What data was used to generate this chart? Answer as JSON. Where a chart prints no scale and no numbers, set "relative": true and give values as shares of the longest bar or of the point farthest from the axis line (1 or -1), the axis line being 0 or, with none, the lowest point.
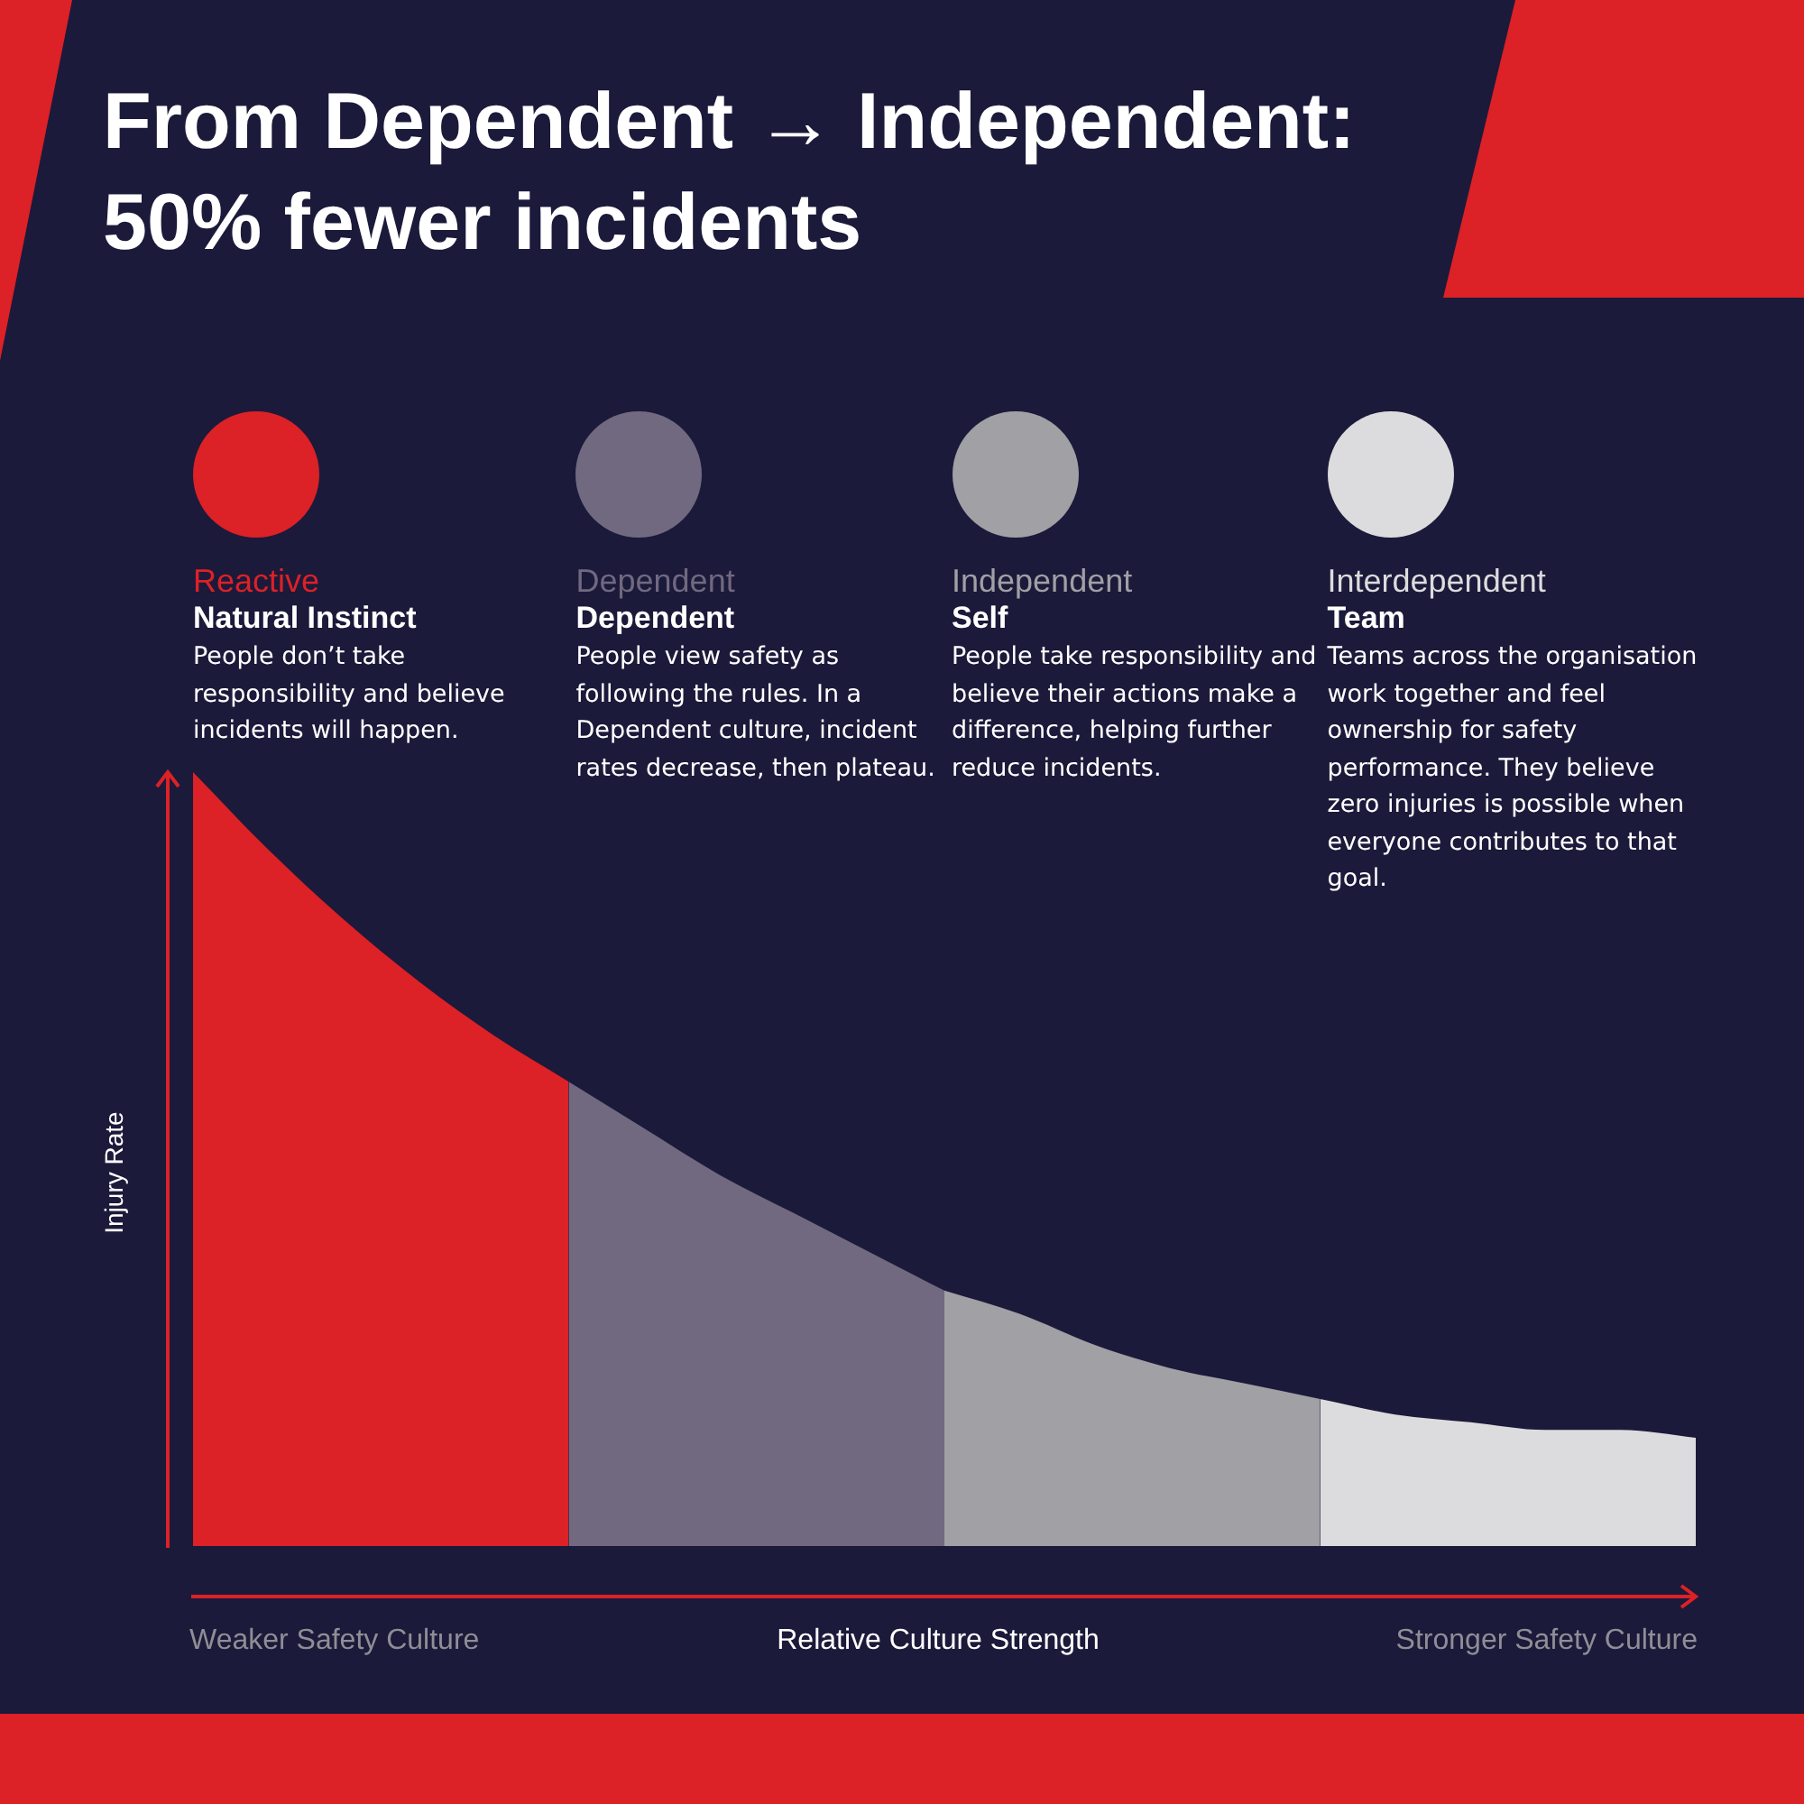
{
  "chart_data": {
    "type": "area",
    "relative": true,
    "title": "From Dependent → Independent: 50% fewer incidents",
    "xlabel": "Relative Culture Strength",
    "ylabel": "Injury Rate",
    "legend": "top",
    "categories": [
      null,
      null,
      null,
      null,
      null,
      null,
      null,
      null,
      null,
      null,
      null,
      null,
      null,
      null,
      null,
      null,
      null,
      null,
      null,
      null,
      null
    ],
    "series": [
      {
        "name": "Reactive",
        "color": "#dc2127",
        "values": [
          1,
          0.9,
          0.81,
          0.73,
          0.66,
          0.6,
          null,
          null,
          null,
          null,
          null,
          null,
          null,
          null,
          null,
          null,
          null,
          null,
          null,
          null,
          null
        ]
      },
      {
        "name": "Dependent",
        "color": "#716980",
        "values": [
          null,
          null,
          null,
          null,
          null,
          0.6,
          0.54,
          0.48,
          0.43,
          0.38,
          0.33,
          null,
          null,
          null,
          null,
          null,
          null,
          null,
          null,
          null,
          null
        ]
      },
      {
        "name": "Independent",
        "color": "#a0a0a5",
        "values": [
          null,
          null,
          null,
          null,
          null,
          null,
          null,
          null,
          null,
          null,
          0.33,
          0.3,
          0.26,
          0.23,
          0.21,
          0.19,
          null,
          null,
          null,
          null,
          null
        ]
      },
      {
        "name": "Interdependent",
        "color": "#dcdcde",
        "values": [
          null,
          null,
          null,
          null,
          null,
          null,
          null,
          null,
          null,
          null,
          null,
          null,
          null,
          null,
          null,
          0.19,
          0.17,
          0.16,
          0.15,
          0.15,
          0.14
        ]
      }
    ],
    "annotations": [
      "Natural Instinct",
      "People don’t take responsibility and believe incidents will happen.",
      "Dependent",
      "People view safety as following the rules. In a Dependent culture, incident rates decrease, then plateau.",
      "Self",
      "People take responsibility and believe their actions make a difference, helping further reduce incidents.",
      "Team",
      "Teams across the organisation work together and feel ownership for safety performance. They believe zero injuries is possible when everyone contributes to that goal.",
      "Weaker Safety Culture",
      "Stronger Safety Culture"
    ]
  }
}
